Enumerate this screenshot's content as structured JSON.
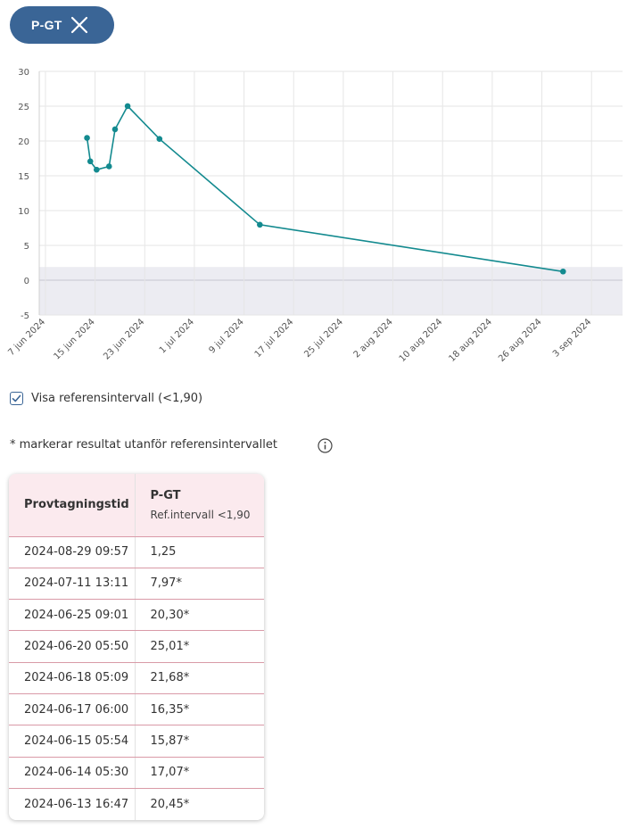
{
  "filter_chip": {
    "label": "P-GT",
    "close_icon": "close-icon",
    "color": "#3a6596"
  },
  "chart_data": {
    "type": "line",
    "x_type": "date",
    "series": [
      {
        "values": [
          {
            "x": "2024-06-13 16:47",
            "y": 20.45
          },
          {
            "x": "2024-06-14 05:30",
            "y": 17.07
          },
          {
            "x": "2024-06-15 05:54",
            "y": 15.87
          },
          {
            "x": "2024-06-17 06:00",
            "y": 16.35
          },
          {
            "x": "2024-06-18 05:09",
            "y": 21.68
          },
          {
            "x": "2024-06-20 05:50",
            "y": 25.01
          },
          {
            "x": "2024-06-25 09:01",
            "y": 20.3
          },
          {
            "x": "2024-07-11 13:11",
            "y": 7.97
          },
          {
            "x": "2024-08-29 09:57",
            "y": 1.25
          }
        ]
      }
    ],
    "line_color": "#138a8f",
    "reference_band": {
      "from": -5,
      "to": 1.9,
      "color": "#ececf2"
    },
    "xlim": [
      "2024-06-06",
      "2024-09-08"
    ],
    "ylim": [
      -5,
      30
    ],
    "y_ticks": [
      "30",
      "25",
      "20",
      "15",
      "10",
      "5",
      "0",
      "-5"
    ],
    "x_ticks": [
      {
        "date": "2024-06-07",
        "label": "7 jun 2024"
      },
      {
        "date": "2024-06-15",
        "label": "15 jun 2024"
      },
      {
        "date": "2024-06-23",
        "label": "23 jun 2024"
      },
      {
        "date": "2024-07-01",
        "label": "1 jul 2024"
      },
      {
        "date": "2024-07-09",
        "label": "9 jul 2024"
      },
      {
        "date": "2024-07-17",
        "label": "17 jul 2024"
      },
      {
        "date": "2024-07-25",
        "label": "25 jul 2024"
      },
      {
        "date": "2024-08-02",
        "label": "2 aug 2024"
      },
      {
        "date": "2024-08-10",
        "label": "10 aug 2024"
      },
      {
        "date": "2024-08-18",
        "label": "18 aug 2024"
      },
      {
        "date": "2024-08-26",
        "label": "26 aug 2024"
      },
      {
        "date": "2024-09-03",
        "label": "3 sep 2024"
      }
    ],
    "grid": true
  },
  "reference_toggle": {
    "label": "Visa referensintervall (<1,90)",
    "checked": true
  },
  "note": {
    "text": "* markerar resultat utanför referensintervallet",
    "info_icon": "info-icon"
  },
  "table": {
    "header_time": "Provtagningstid",
    "header_test": "P-GT",
    "header_ref": "Ref.intervall <1,90",
    "rows": [
      {
        "time": "2024-08-29 09:57",
        "value": "1,25"
      },
      {
        "time": "2024-07-11 13:11",
        "value": "7,97*"
      },
      {
        "time": "2024-06-25 09:01",
        "value": "20,30*"
      },
      {
        "time": "2024-06-20 05:50",
        "value": "25,01*"
      },
      {
        "time": "2024-06-18 05:09",
        "value": "21,68*"
      },
      {
        "time": "2024-06-17 06:00",
        "value": "16,35*"
      },
      {
        "time": "2024-06-15 05:54",
        "value": "15,87*"
      },
      {
        "time": "2024-06-14 05:30",
        "value": "17,07*"
      },
      {
        "time": "2024-06-13 16:47",
        "value": "20,45*"
      }
    ]
  }
}
